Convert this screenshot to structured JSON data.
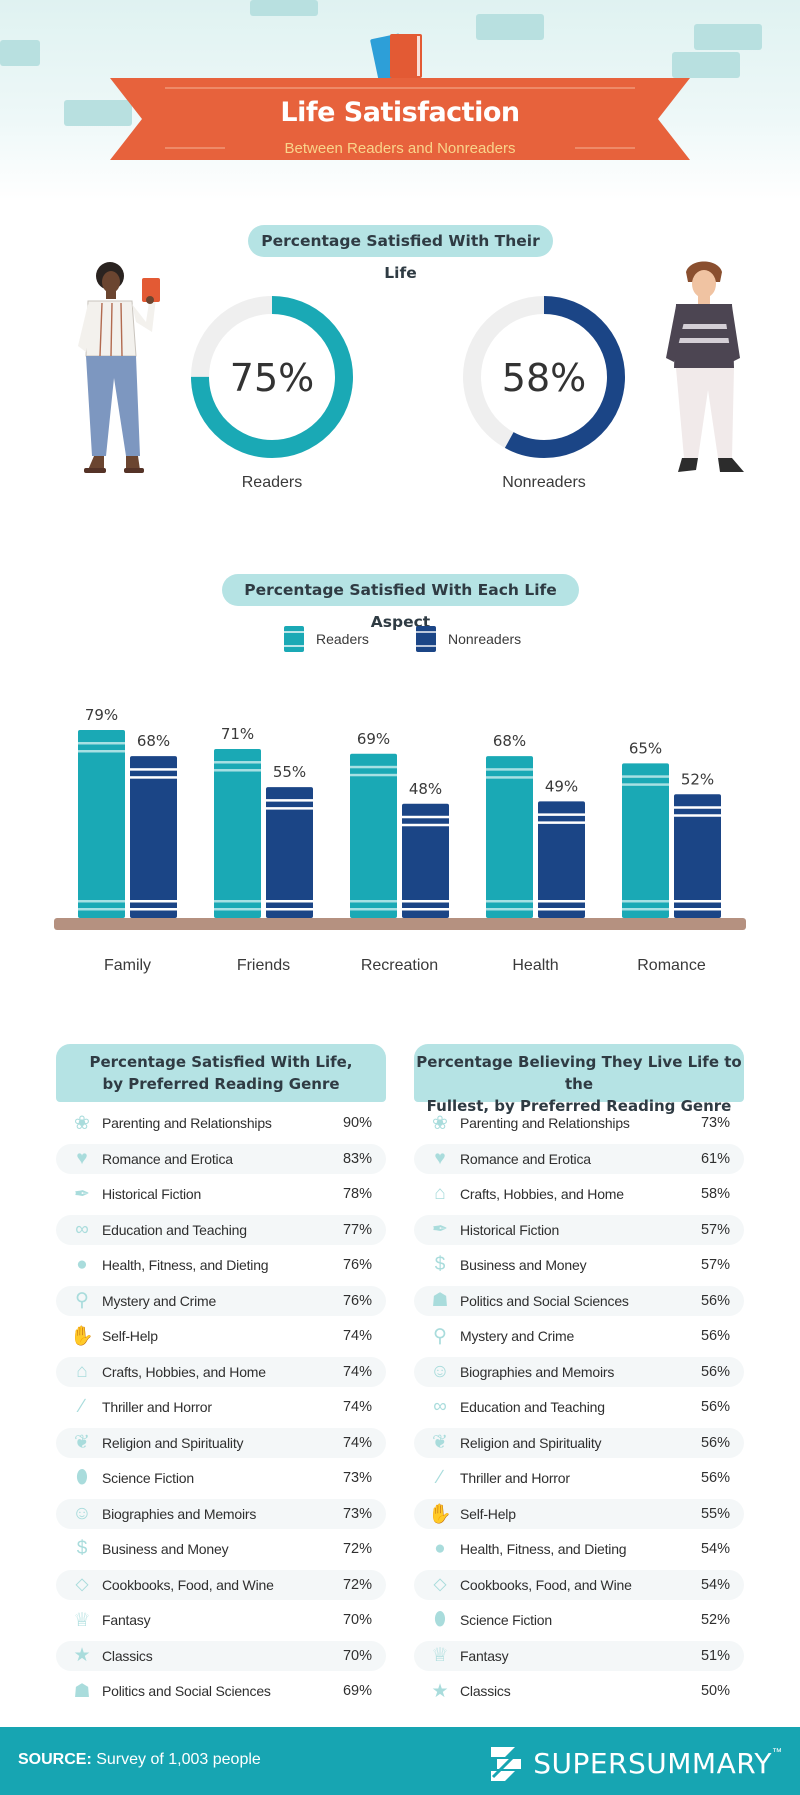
{
  "header": {
    "title": "Life Satisfaction",
    "subtitle": "Between Readers and Nonreaders"
  },
  "colors": {
    "readers": "#1aa9b5",
    "nonreaders": "#1b4586",
    "ribbon": "#e7623c",
    "pill": "#b5e3e4",
    "shelf": "#b59180",
    "footer": "#17a5b2"
  },
  "overall": {
    "heading": "Percentage Satisfied With Their Life",
    "readers": {
      "label": "Readers",
      "value": 75,
      "display": "75%"
    },
    "nonreaders": {
      "label": "Nonreaders",
      "value": 58,
      "display": "58%"
    }
  },
  "aspects": {
    "heading": "Percentage Satisfied With Each Life Aspect",
    "legend": {
      "readers": "Readers",
      "nonreaders": "Nonreaders"
    }
  },
  "chart_data": [
    {
      "type": "pie",
      "title": "Percentage Satisfied With Their Life",
      "series": [
        {
          "name": "Readers",
          "values": [
            75
          ]
        },
        {
          "name": "Nonreaders",
          "values": [
            58
          ]
        }
      ]
    },
    {
      "type": "bar",
      "title": "Percentage Satisfied With Each Life Aspect",
      "categories": [
        "Family",
        "Friends",
        "Recreation",
        "Health",
        "Romance"
      ],
      "series": [
        {
          "name": "Readers",
          "values": [
            79,
            71,
            69,
            68,
            65
          ],
          "labels": [
            "79%",
            "71%",
            "69%",
            "68%",
            "65%"
          ]
        },
        {
          "name": "Nonreaders",
          "values": [
            68,
            55,
            48,
            49,
            52
          ],
          "labels": [
            "68%",
            "55%",
            "48%",
            "49%",
            "52%"
          ]
        }
      ],
      "ylim": [
        0,
        100
      ],
      "grid": false,
      "legend": "top-center"
    },
    {
      "type": "table",
      "title": "Percentage Satisfied With Life, by Preferred Reading Genre",
      "rows": [
        {
          "genre": "Parenting and Relationships",
          "value": "90%",
          "icon": "baby-rattle-icon"
        },
        {
          "genre": "Romance and Erotica",
          "value": "83%",
          "icon": "heart-icon"
        },
        {
          "genre": "Historical Fiction",
          "value": "78%",
          "icon": "quill-icon"
        },
        {
          "genre": "Education and Teaching",
          "value": "77%",
          "icon": "glasses-icon"
        },
        {
          "genre": "Health, Fitness, and Dieting",
          "value": "76%",
          "icon": "apple-icon"
        },
        {
          "genre": "Mystery and Crime",
          "value": "76%",
          "icon": "magnifier-icon"
        },
        {
          "genre": "Self-Help",
          "value": "74%",
          "icon": "hand-icon"
        },
        {
          "genre": "Crafts, Hobbies, and Home",
          "value": "74%",
          "icon": "house-icon"
        },
        {
          "genre": "Thriller and Horror",
          "value": "74%",
          "icon": "knife-icon"
        },
        {
          "genre": "Religion and Spirituality",
          "value": "74%",
          "icon": "dove-icon"
        },
        {
          "genre": "Science Fiction",
          "value": "73%",
          "icon": "alien-icon"
        },
        {
          "genre": "Biographies and Memoirs",
          "value": "73%",
          "icon": "person-icon"
        },
        {
          "genre": "Business and Money",
          "value": "72%",
          "icon": "dollar-icon"
        },
        {
          "genre": "Cookbooks, Food, and Wine",
          "value": "72%",
          "icon": "wine-glass-icon"
        },
        {
          "genre": "Fantasy",
          "value": "70%",
          "icon": "crown-icon"
        },
        {
          "genre": "Classics",
          "value": "70%",
          "icon": "star-icon"
        },
        {
          "genre": "Politics and Social Sciences",
          "value": "69%",
          "icon": "capitol-icon"
        }
      ]
    },
    {
      "type": "table",
      "title": "Percentage Believing They Live Life to the Fullest, by Preferred Reading Genre",
      "rows": [
        {
          "genre": "Parenting and Relationships",
          "value": "73%",
          "icon": "baby-rattle-icon"
        },
        {
          "genre": "Romance and Erotica",
          "value": "61%",
          "icon": "heart-icon"
        },
        {
          "genre": "Crafts, Hobbies, and Home",
          "value": "58%",
          "icon": "house-icon"
        },
        {
          "genre": "Historical Fiction",
          "value": "57%",
          "icon": "quill-icon"
        },
        {
          "genre": "Business and Money",
          "value": "57%",
          "icon": "dollar-icon"
        },
        {
          "genre": "Politics and Social Sciences",
          "value": "56%",
          "icon": "capitol-icon"
        },
        {
          "genre": "Mystery and Crime",
          "value": "56%",
          "icon": "magnifier-icon"
        },
        {
          "genre": "Biographies and Memoirs",
          "value": "56%",
          "icon": "person-icon"
        },
        {
          "genre": "Education and Teaching",
          "value": "56%",
          "icon": "glasses-icon"
        },
        {
          "genre": "Religion and Spirituality",
          "value": "56%",
          "icon": "dove-icon"
        },
        {
          "genre": "Thriller and Horror",
          "value": "56%",
          "icon": "knife-icon"
        },
        {
          "genre": "Self-Help",
          "value": "55%",
          "icon": "hand-icon"
        },
        {
          "genre": "Health, Fitness, and Dieting",
          "value": "54%",
          "icon": "apple-icon"
        },
        {
          "genre": "Cookbooks, Food, and Wine",
          "value": "54%",
          "icon": "wine-glass-icon"
        },
        {
          "genre": "Science Fiction",
          "value": "52%",
          "icon": "alien-icon"
        },
        {
          "genre": "Fantasy",
          "value": "51%",
          "icon": "crown-icon"
        },
        {
          "genre": "Classics",
          "value": "50%",
          "icon": "star-icon"
        }
      ]
    }
  ],
  "left_table_title_lines": [
    "Percentage Satisfied With Life,",
    "by Preferred Reading Genre"
  ],
  "right_table_title_lines": [
    "Percentage Believing They Live Life to the",
    "Fullest, by Preferred Reading Genre"
  ],
  "footer": {
    "source_label": "SOURCE:",
    "source_text": " Survey of 1,003 people",
    "brand": "SUPERSUMMARY",
    "trademark": "™"
  }
}
